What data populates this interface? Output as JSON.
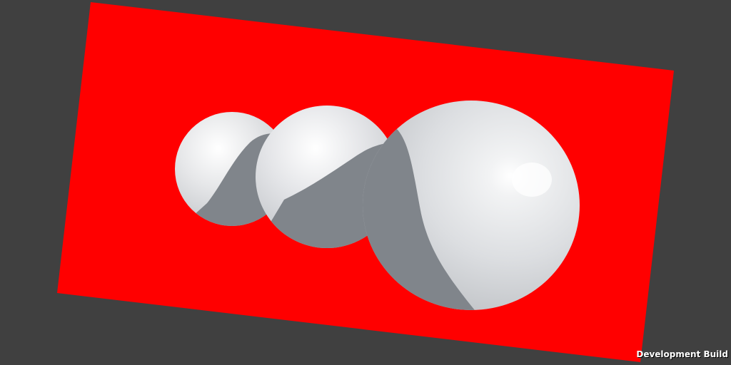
{
  "overlay": {
    "build_label": "Development Build"
  },
  "colors": {
    "background": "#404040",
    "plane": "#ff0000",
    "sphere_light": "#ffffff",
    "sphere_mid": "#dadcdf",
    "sphere_dark": "#b9bcc0",
    "shadow": "#7f8388",
    "label_text": "#ffffff"
  }
}
